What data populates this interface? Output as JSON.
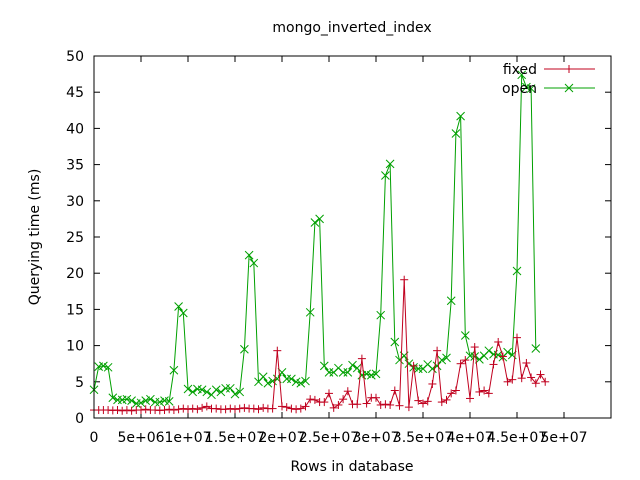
{
  "chart_data": {
    "type": "line",
    "title": "mongo_inverted_index",
    "xlabel": "Rows in database",
    "ylabel": "Querying time (ms)",
    "xlim": [
      0,
      55000000
    ],
    "ylim": [
      0,
      50
    ],
    "x_ticks": [
      {
        "value": 0,
        "label": "0"
      },
      {
        "value": 5000000,
        "label": "5e+06"
      },
      {
        "value": 10000000,
        "label": "1e+07"
      },
      {
        "value": 15000000,
        "label": "1.5e+07"
      },
      {
        "value": 20000000,
        "label": "2e+07"
      },
      {
        "value": 25000000,
        "label": "2.5e+07"
      },
      {
        "value": 30000000,
        "label": "3e+07"
      },
      {
        "value": 35000000,
        "label": "3.5e+07"
      },
      {
        "value": 40000000,
        "label": "4e+07"
      },
      {
        "value": 45000000,
        "label": "4.5e+07"
      },
      {
        "value": 50000000,
        "label": "5e+07"
      }
    ],
    "y_ticks": [
      0,
      5,
      10,
      15,
      20,
      25,
      30,
      35,
      40,
      45,
      50
    ],
    "legend_position": "top-right",
    "grid": false,
    "series": [
      {
        "name": "fixed",
        "color": "#c0001e",
        "marker": "plus",
        "points": [
          [
            0,
            1.1
          ],
          [
            500000,
            1.1
          ],
          [
            1000000,
            1.1
          ],
          [
            1500000,
            1.1
          ],
          [
            2000000,
            1.05
          ],
          [
            2500000,
            1.1
          ],
          [
            3000000,
            1.0
          ],
          [
            3500000,
            1.1
          ],
          [
            4000000,
            1.0
          ],
          [
            4500000,
            1.1
          ],
          [
            5000000,
            1.1
          ],
          [
            5500000,
            1.2
          ],
          [
            6000000,
            1.1
          ],
          [
            6500000,
            1.1
          ],
          [
            7000000,
            1.05
          ],
          [
            7500000,
            1.1
          ],
          [
            8000000,
            1.2
          ],
          [
            8500000,
            1.1
          ],
          [
            9000000,
            1.2
          ],
          [
            9500000,
            1.3
          ],
          [
            10000000,
            1.2
          ],
          [
            10500000,
            1.3
          ],
          [
            11000000,
            1.2
          ],
          [
            11500000,
            1.4
          ],
          [
            12000000,
            1.6
          ],
          [
            12500000,
            1.3
          ],
          [
            13000000,
            1.3
          ],
          [
            13500000,
            1.2
          ],
          [
            14000000,
            1.2
          ],
          [
            14500000,
            1.3
          ],
          [
            15000000,
            1.2
          ],
          [
            15500000,
            1.3
          ],
          [
            16000000,
            1.4
          ],
          [
            16500000,
            1.3
          ],
          [
            17000000,
            1.3
          ],
          [
            17500000,
            1.2
          ],
          [
            18000000,
            1.4
          ],
          [
            18500000,
            1.3
          ],
          [
            19000000,
            1.3
          ],
          [
            19500000,
            9.3
          ],
          [
            20000000,
            1.6
          ],
          [
            20500000,
            1.5
          ],
          [
            21000000,
            1.3
          ],
          [
            21500000,
            1.2
          ],
          [
            22000000,
            1.3
          ],
          [
            22500000,
            1.6
          ],
          [
            23000000,
            2.6
          ],
          [
            23500000,
            2.5
          ],
          [
            24000000,
            2.2
          ],
          [
            24500000,
            2.2
          ],
          [
            25000000,
            3.4
          ],
          [
            25500000,
            1.4
          ],
          [
            26000000,
            1.8
          ],
          [
            26500000,
            2.6
          ],
          [
            27000000,
            3.7
          ],
          [
            27500000,
            1.9
          ],
          [
            28000000,
            1.9
          ],
          [
            28500000,
            8.2
          ],
          [
            29000000,
            2.0
          ],
          [
            29500000,
            2.8
          ],
          [
            30000000,
            2.8
          ],
          [
            30500000,
            1.8
          ],
          [
            31000000,
            1.9
          ],
          [
            31500000,
            1.8
          ],
          [
            32000000,
            3.8
          ],
          [
            32500000,
            1.7
          ],
          [
            33000000,
            19.1
          ],
          [
            33500000,
            1.5
          ],
          [
            34000000,
            7.2
          ],
          [
            34500000,
            2.4
          ],
          [
            35000000,
            2.0
          ],
          [
            35500000,
            2.3
          ],
          [
            36000000,
            4.7
          ],
          [
            36500000,
            9.3
          ],
          [
            37000000,
            2.2
          ],
          [
            37500000,
            2.5
          ],
          [
            38000000,
            3.4
          ],
          [
            38500000,
            3.8
          ],
          [
            39000000,
            7.5
          ],
          [
            39500000,
            8.0
          ],
          [
            40000000,
            2.7
          ],
          [
            40500000,
            9.8
          ],
          [
            41000000,
            3.6
          ],
          [
            41500000,
            3.8
          ],
          [
            42000000,
            3.4
          ],
          [
            42500000,
            7.4
          ],
          [
            43000000,
            10.5
          ],
          [
            43500000,
            8.5
          ],
          [
            44000000,
            5.0
          ],
          [
            44500000,
            5.3
          ],
          [
            45000000,
            11.1
          ],
          [
            45500000,
            5.5
          ],
          [
            46000000,
            7.6
          ],
          [
            46500000,
            5.6
          ],
          [
            47000000,
            4.8
          ],
          [
            47500000,
            6.0
          ],
          [
            48000000,
            5.0
          ]
        ]
      },
      {
        "name": "open",
        "color": "#00a000",
        "marker": "cross",
        "points": [
          [
            0,
            3.9
          ],
          [
            500000,
            7.1
          ],
          [
            1000000,
            7.2
          ],
          [
            1500000,
            7.0
          ],
          [
            2000000,
            2.8
          ],
          [
            2500000,
            2.5
          ],
          [
            3000000,
            2.5
          ],
          [
            3500000,
            2.6
          ],
          [
            4000000,
            2.4
          ],
          [
            4500000,
            2.0
          ],
          [
            5000000,
            2.1
          ],
          [
            5500000,
            2.4
          ],
          [
            6000000,
            2.6
          ],
          [
            6500000,
            2.2
          ],
          [
            7000000,
            2.2
          ],
          [
            7500000,
            2.4
          ],
          [
            8000000,
            2.3
          ],
          [
            8500000,
            6.6
          ],
          [
            9000000,
            15.4
          ],
          [
            9500000,
            14.5
          ],
          [
            10000000,
            4.0
          ],
          [
            10500000,
            3.6
          ],
          [
            11000000,
            4.0
          ],
          [
            11500000,
            3.9
          ],
          [
            12000000,
            3.6
          ],
          [
            12500000,
            3.2
          ],
          [
            13000000,
            3.9
          ],
          [
            13500000,
            3.6
          ],
          [
            14000000,
            4.1
          ],
          [
            14500000,
            4.1
          ],
          [
            15000000,
            3.3
          ],
          [
            15500000,
            3.6
          ],
          [
            16000000,
            9.5
          ],
          [
            16500000,
            22.5
          ],
          [
            17000000,
            21.4
          ],
          [
            17500000,
            5.0
          ],
          [
            18000000,
            5.7
          ],
          [
            18500000,
            4.8
          ],
          [
            19000000,
            5.1
          ],
          [
            19500000,
            5.4
          ],
          [
            20000000,
            6.3
          ],
          [
            20500000,
            5.4
          ],
          [
            21000000,
            5.4
          ],
          [
            21500000,
            5.0
          ],
          [
            22000000,
            4.8
          ],
          [
            22500000,
            5.1
          ],
          [
            23000000,
            14.6
          ],
          [
            23500000,
            27.0
          ],
          [
            24000000,
            27.5
          ],
          [
            24500000,
            7.2
          ],
          [
            25000000,
            6.3
          ],
          [
            25500000,
            6.3
          ],
          [
            26000000,
            6.9
          ],
          [
            26500000,
            6.3
          ],
          [
            27000000,
            6.3
          ],
          [
            27500000,
            7.3
          ],
          [
            28000000,
            6.9
          ],
          [
            28500000,
            5.9
          ],
          [
            29000000,
            6.1
          ],
          [
            29500000,
            5.9
          ],
          [
            30000000,
            6.1
          ],
          [
            30500000,
            14.2
          ],
          [
            31000000,
            33.5
          ],
          [
            31500000,
            35.1
          ],
          [
            32000000,
            10.5
          ],
          [
            32500000,
            8.0
          ],
          [
            33000000,
            8.6
          ],
          [
            33500000,
            7.5
          ],
          [
            34000000,
            7.0
          ],
          [
            34500000,
            6.8
          ],
          [
            35000000,
            6.8
          ],
          [
            35500000,
            7.4
          ],
          [
            36000000,
            6.8
          ],
          [
            36500000,
            7.2
          ],
          [
            37000000,
            8.0
          ],
          [
            37500000,
            8.3
          ],
          [
            38000000,
            16.2
          ],
          [
            38500000,
            39.3
          ],
          [
            39000000,
            41.7
          ],
          [
            39500000,
            11.4
          ],
          [
            40000000,
            8.6
          ],
          [
            40500000,
            8.5
          ],
          [
            41000000,
            8.1
          ],
          [
            41500000,
            8.6
          ],
          [
            42000000,
            9.3
          ],
          [
            42500000,
            8.8
          ],
          [
            43000000,
            8.7
          ],
          [
            43500000,
            8.4
          ],
          [
            44000000,
            9.1
          ],
          [
            44500000,
            8.7
          ],
          [
            45000000,
            20.3
          ],
          [
            45500000,
            47.4
          ],
          [
            46000000,
            45.7
          ],
          [
            46500000,
            45.5
          ],
          [
            47000000,
            9.6
          ]
        ]
      }
    ]
  }
}
